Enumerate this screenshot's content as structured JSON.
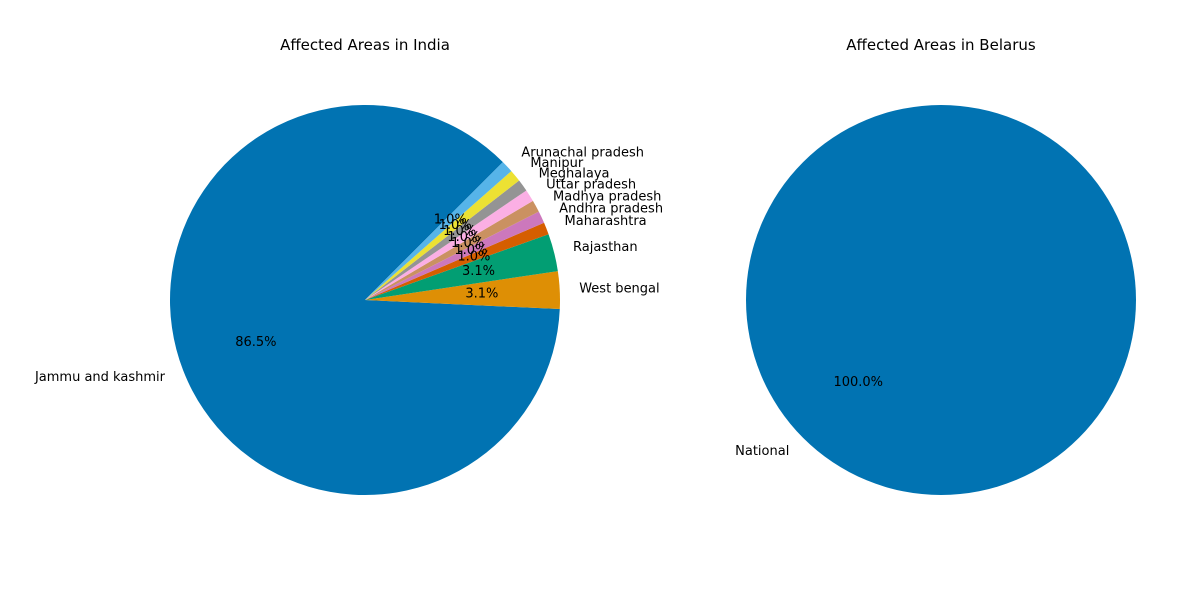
{
  "chart_data": [
    {
      "type": "pie",
      "title": "Affected Areas in India",
      "start_angle_deg": 45,
      "direction": "counterclockwise",
      "slices": [
        {
          "label": "Jammu and kashmir",
          "value": 86.5,
          "pct_label": "86.5%",
          "color": "#0173b2"
        },
        {
          "label": "West bengal",
          "value": 3.1,
          "pct_label": "3.1%",
          "color": "#de8f05"
        },
        {
          "label": "Rajasthan",
          "value": 3.1,
          "pct_label": "3.1%",
          "color": "#029e73"
        },
        {
          "label": "Maharashtra",
          "value": 1.0,
          "pct_label": "1.0%",
          "color": "#d55e00"
        },
        {
          "label": "Andhra pradesh",
          "value": 1.0,
          "pct_label": "1.0%",
          "color": "#cc78bc"
        },
        {
          "label": "Madhya pradesh",
          "value": 1.0,
          "pct_label": "1.0%",
          "color": "#ca9161"
        },
        {
          "label": "Uttar pradesh",
          "value": 1.0,
          "pct_label": "1.0%",
          "color": "#fbafe4"
        },
        {
          "label": "Meghalaya",
          "value": 1.0,
          "pct_label": "1.0%",
          "color": "#949494"
        },
        {
          "label": "Manipur",
          "value": 1.0,
          "pct_label": "1.0%",
          "color": "#ece133"
        },
        {
          "label": "Arunachal pradesh",
          "value": 1.0,
          "pct_label": "1.0%",
          "color": "#56b4e9"
        }
      ]
    },
    {
      "type": "pie",
      "title": "Affected Areas in Belarus",
      "start_angle_deg": 45,
      "direction": "counterclockwise",
      "slices": [
        {
          "label": "National",
          "value": 100.0,
          "pct_label": "100.0%",
          "color": "#0173b2"
        }
      ]
    }
  ]
}
